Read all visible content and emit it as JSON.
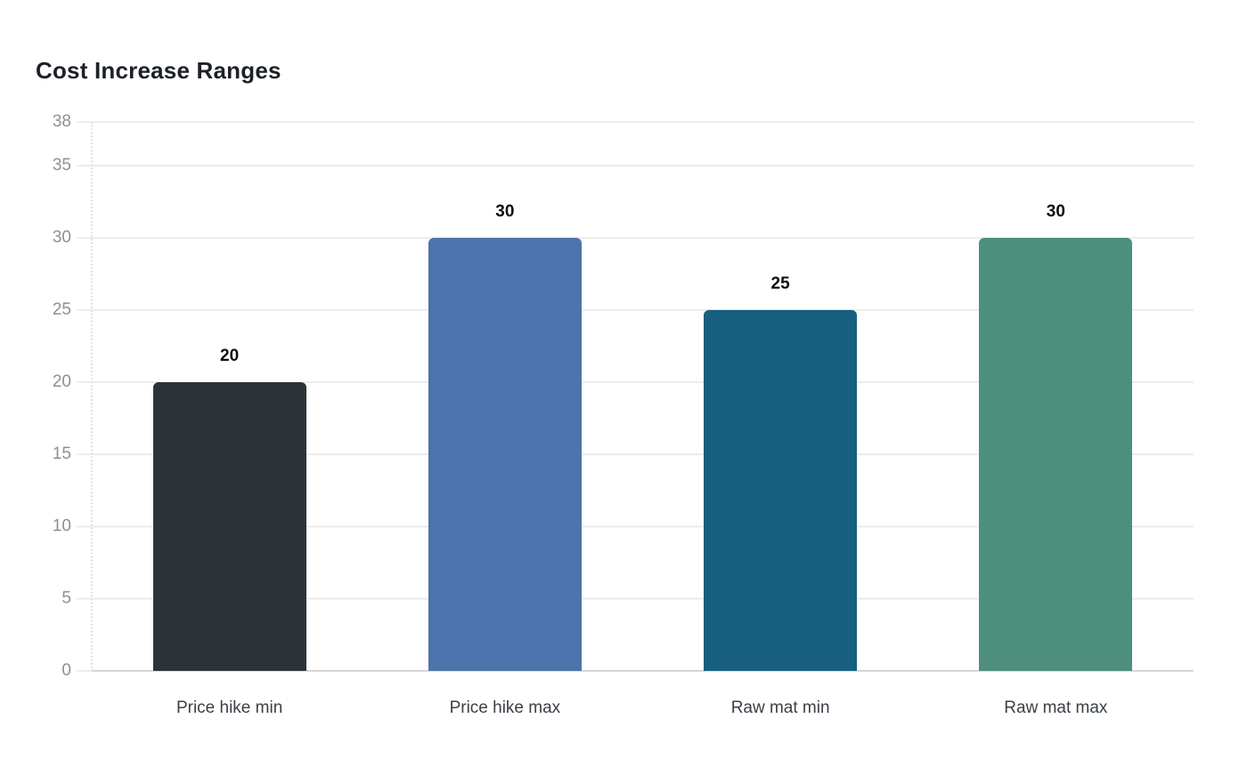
{
  "page": {
    "background": "#ffffff"
  },
  "chart_data": {
    "type": "bar",
    "title": "Cost Increase Ranges",
    "categories": [
      "Price hike min",
      "Price hike max",
      "Raw mat min",
      "Raw mat max"
    ],
    "values": [
      20,
      30,
      25,
      30
    ],
    "value_labels": [
      "20",
      "30",
      "25",
      "30"
    ],
    "bar_colors": [
      "#2c343a",
      "#4c73ab",
      "#17607f",
      "#4e8e7c"
    ],
    "yticks": [
      0,
      5,
      10,
      15,
      20,
      25,
      30,
      35,
      38
    ],
    "ytick_labels": [
      "0",
      "5",
      "10",
      "15",
      "20",
      "25",
      "30",
      "35",
      "38"
    ],
    "ylim": [
      0,
      38
    ],
    "xlabel": "",
    "ylabel": "",
    "grid": true,
    "legend": "none",
    "colors": {
      "title": "#1d2127",
      "gridline": "#ececec",
      "baseline": "#d6d6d6",
      "axis_dotted_line": "#e2e2e2",
      "y_tick_label": "#8b9096",
      "category_label": "#3a4046",
      "value_label": "#0d0d0d"
    }
  }
}
